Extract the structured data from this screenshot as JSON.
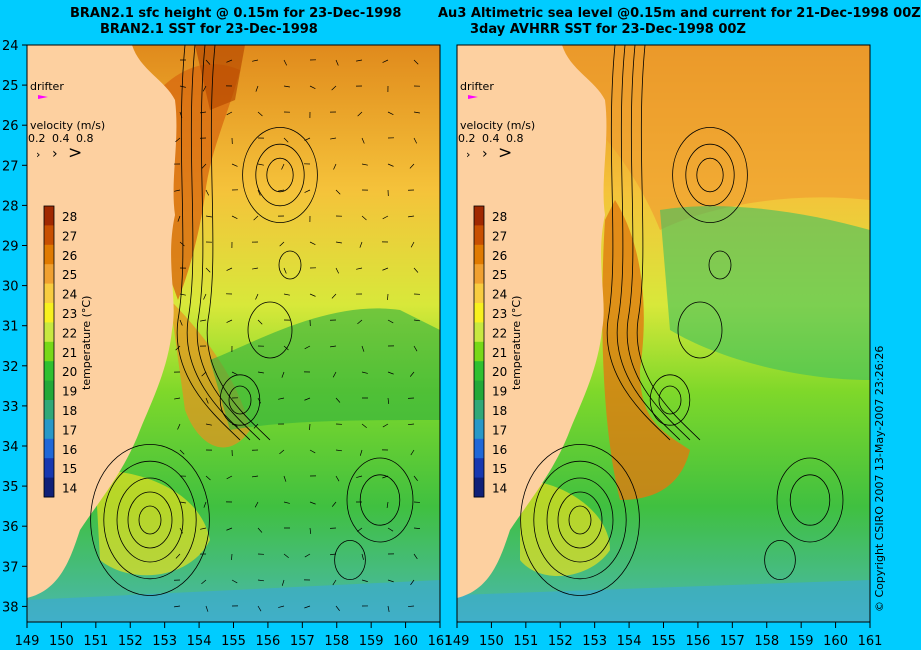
{
  "titles": {
    "left_line1": "BRAN2.1 sfc height @ 0.15m for 23-Dec-1998",
    "left_line2": "BRAN2.1 SST for 23-Dec-1998",
    "right_line1": "Au3 Altimetric sea level  @0.15m and current for 21-Dec-1998 00Z",
    "right_line2": "3day AVHRR SST for 23-Dec-1998 00Z"
  },
  "latitude_labels": [
    "24",
    "25",
    "26",
    "27",
    "28",
    "29",
    "30",
    "31",
    "32",
    "33",
    "34",
    "35",
    "36",
    "37",
    "38"
  ],
  "longitude_labels": [
    "149",
    "150",
    "151",
    "152",
    "153",
    "154",
    "155",
    "156",
    "157",
    "158",
    "159",
    "160",
    "161"
  ],
  "drifter_label": "drifter",
  "velocity_legend": {
    "title": "velocity (m/s)",
    "values": [
      "0.2",
      "0.4",
      "0.8"
    ],
    "arrows": [
      "›",
      "›",
      ">"
    ]
  },
  "temperature_scale": {
    "title": "temperature (°C)",
    "values": [
      "28",
      "27",
      "26",
      "25",
      "24",
      "23",
      "22",
      "21",
      "20",
      "19",
      "18",
      "17",
      "16",
      "15",
      "14"
    ],
    "colors": [
      "#a02800",
      "#c84f00",
      "#e07a00",
      "#f0a030",
      "#f8cc40",
      "#f8f020",
      "#c8e840",
      "#78d818",
      "#30c030",
      "#22a838",
      "#30a878",
      "#2898c8",
      "#2068d8",
      "#1838b0",
      "#102078"
    ]
  },
  "copyright": "© Copyright CSIRO 2007   13-May-2007 23:26:26"
}
